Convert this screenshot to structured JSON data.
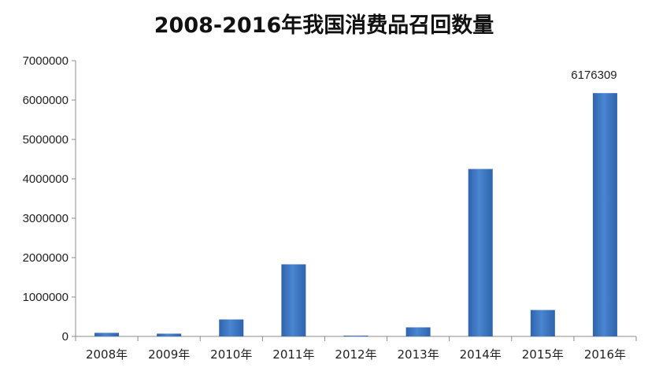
{
  "chart_data": {
    "type": "bar",
    "title": "2008-2016年我国消费品召回数量",
    "xlabel": "",
    "ylabel": "",
    "categories": [
      "2008年",
      "2009年",
      "2010年",
      "2011年",
      "2012年",
      "2013年",
      "2014年",
      "2015年",
      "2016年"
    ],
    "values": [
      90000,
      70000,
      430000,
      1830000,
      20000,
      230000,
      4250000,
      670000,
      6176309
    ],
    "data_labels": [
      null,
      null,
      null,
      null,
      null,
      null,
      null,
      null,
      "6176309"
    ],
    "ylim": [
      0,
      7000000
    ],
    "yticks": [
      "0",
      "1000000",
      "2000000",
      "3000000",
      "4000000",
      "5000000",
      "6000000",
      "7000000"
    ],
    "grid": false,
    "legend": "none",
    "bar_color": "#2f63ad",
    "bar_color_light": "#4a86d0"
  }
}
